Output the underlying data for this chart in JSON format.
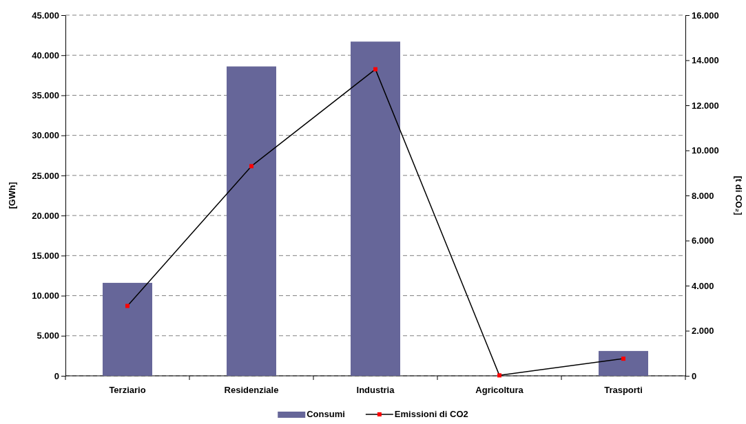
{
  "chart_data": {
    "type": "bar",
    "ylabel": "[GWh]",
    "y2label": "[t di CO₂]",
    "categories": [
      "Terziario",
      "Residenziale",
      "Industria",
      "Agricoltura",
      "Trasporti"
    ],
    "series": [
      {
        "name": "Consumi",
        "color": "#666699",
        "values": [
          11600,
          38600,
          41700,
          0,
          3100
        ]
      },
      {
        "name": "Emissioni di CO2",
        "type": "line",
        "axis": "y2",
        "color": "#000000",
        "colors": [
          "#ff0000",
          "#ff0000",
          "#ff0000",
          "#ff0000",
          "#ff0000"
        ],
        "marker": "square",
        "values": [
          3100,
          9300,
          13600,
          20,
          760
        ]
      }
    ],
    "ylim": [
      0,
      45000
    ],
    "yticks": [
      {
        "value": 0,
        "label": "0"
      },
      {
        "value": 5000,
        "label": "5.000"
      },
      {
        "value": 10000,
        "label": "10.000"
      },
      {
        "value": 15000,
        "label": "15.000"
      },
      {
        "value": 20000,
        "label": "20.000"
      },
      {
        "value": 25000,
        "label": "25.000"
      },
      {
        "value": 30000,
        "label": "30.000"
      },
      {
        "value": 35000,
        "label": "35.000"
      },
      {
        "value": 40000,
        "label": "40.000"
      },
      {
        "value": 45000,
        "label": "45.000"
      }
    ],
    "y2lim": [
      0,
      16000
    ],
    "y2ticks": [
      {
        "value": 0,
        "label": "0"
      },
      {
        "value": 2000,
        "label": "2.000"
      },
      {
        "value": 4000,
        "label": "4.000"
      },
      {
        "value": 6000,
        "label": "6.000"
      },
      {
        "value": 8000,
        "label": "8.000"
      },
      {
        "value": 10000,
        "label": "10.000"
      },
      {
        "value": 12000,
        "label": "12.000"
      },
      {
        "value": 14000,
        "label": "14.000"
      },
      {
        "value": 16000,
        "label": "16.000"
      }
    ],
    "grid": "y",
    "legend": "bottom"
  }
}
